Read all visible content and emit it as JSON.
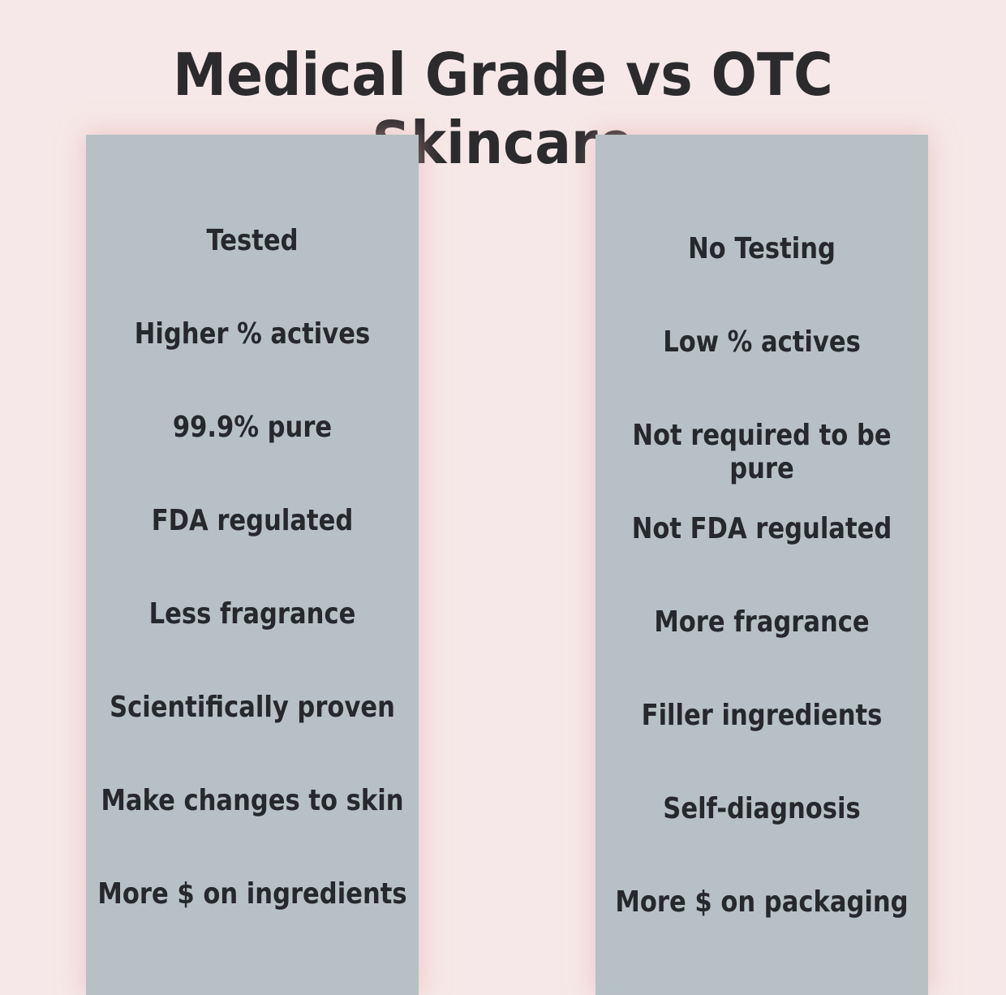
{
  "title": "Medical Grade vs OTC Skincare",
  "columns": [
    {
      "items": [
        "Tested",
        "Higher % actives",
        "99.9% pure",
        "FDA regulated",
        "Less fragrance",
        "Scientifically proven",
        "Make changes to skin",
        "More $ on ingredients"
      ]
    },
    {
      "items": [
        "No Testing",
        "Low % actives",
        "Not required to be pure",
        "Not FDA regulated",
        "More fragrance",
        "Filler ingredients",
        "Self-diagnosis",
        "More $ on packaging"
      ]
    }
  ]
}
